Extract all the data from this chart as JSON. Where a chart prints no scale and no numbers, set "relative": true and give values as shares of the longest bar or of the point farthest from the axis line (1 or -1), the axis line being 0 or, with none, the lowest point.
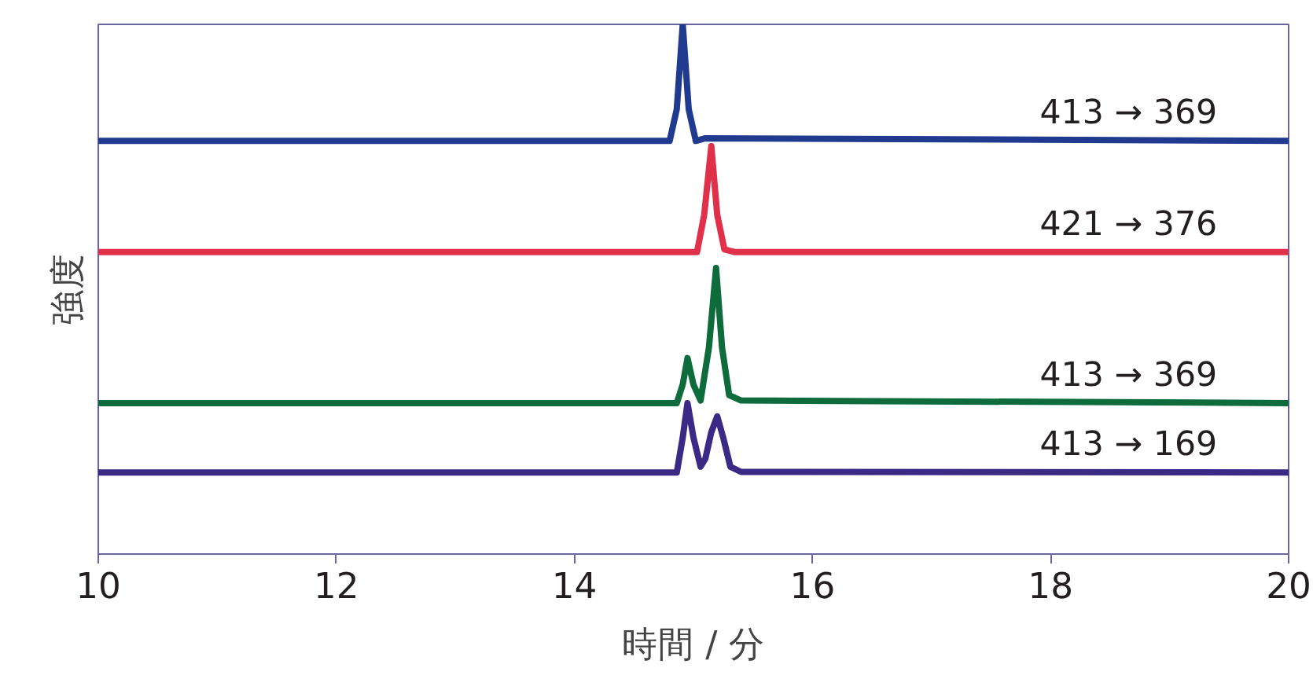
{
  "chart_data": {
    "type": "line",
    "relative": true,
    "xlabel": "時間 / 分",
    "ylabel": "強度",
    "xlim": [
      10,
      20
    ],
    "xticks": [
      10,
      12,
      14,
      16,
      18,
      20
    ],
    "tick_labels": "x",
    "grid": false,
    "marker": "none",
    "line_style": "solid",
    "series": [
      {
        "name": "413 → 369",
        "color": "#1f3a8f",
        "x": [
          10,
          14.8,
          14.86,
          14.91,
          14.96,
          15.02,
          15.1,
          20
        ],
        "values": [
          0.78,
          0.78,
          0.84,
          1.0,
          0.84,
          0.78,
          0.785,
          0.78
        ]
      },
      {
        "name": "421 → 376",
        "color": "#e0304a",
        "x": [
          10,
          15.03,
          15.09,
          15.15,
          15.2,
          15.26,
          15.35,
          20
        ],
        "values": [
          0.57,
          0.57,
          0.64,
          0.77,
          0.64,
          0.575,
          0.57,
          0.57
        ]
      },
      {
        "name": "413 → 369",
        "color": "#0e6b3c",
        "x": [
          10,
          14.86,
          14.91,
          14.95,
          15.0,
          15.06,
          15.13,
          15.19,
          15.24,
          15.3,
          15.4,
          20
        ],
        "values": [
          0.285,
          0.285,
          0.32,
          0.37,
          0.32,
          0.29,
          0.39,
          0.54,
          0.39,
          0.3,
          0.29,
          0.285
        ]
      },
      {
        "name": "413 → 169",
        "color": "#3a2a85",
        "x": [
          10,
          14.86,
          14.91,
          14.95,
          15.0,
          15.06,
          15.1,
          15.15,
          15.2,
          15.25,
          15.31,
          15.4,
          20
        ],
        "values": [
          0.154,
          0.154,
          0.22,
          0.285,
          0.22,
          0.165,
          0.18,
          0.23,
          0.26,
          0.22,
          0.165,
          0.155,
          0.154
        ]
      }
    ]
  }
}
